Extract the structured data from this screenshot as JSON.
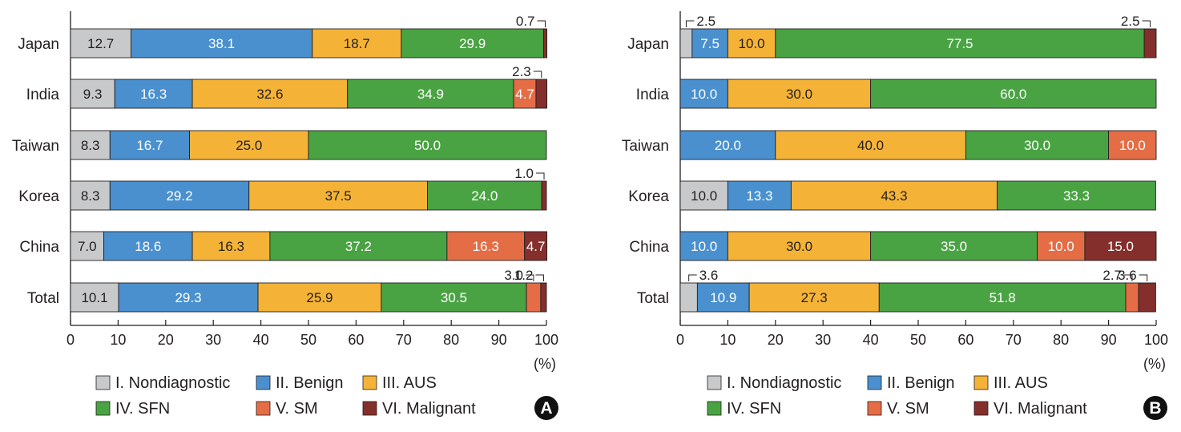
{
  "colors": {
    "I. Nondiagnostic": "#c8c9ca",
    "II. Benign": "#4a90cf",
    "III. AUS": "#f4b337",
    "IV. SFN": "#4aa343",
    "V. SM": "#e46d45",
    "VI. Malignant": "#842f2c"
  },
  "legend": [
    "I. Nondiagnostic",
    "II. Benign",
    "III. AUS",
    "IV. SFN",
    "V. SM",
    "VI. Malignant"
  ],
  "chart_data": [
    {
      "type": "bar",
      "orientation": "horizontal",
      "stacked": true,
      "panel": "A",
      "xlabel": "(%)",
      "xlim": [
        0,
        100
      ],
      "xticks": [
        0,
        10,
        20,
        30,
        40,
        50,
        60,
        70,
        80,
        90,
        100
      ],
      "categories": [
        "Japan",
        "India",
        "Taiwan",
        "Korea",
        "China",
        "Total"
      ],
      "series": [
        {
          "name": "I. Nondiagnostic",
          "values": [
            12.7,
            9.3,
            8.3,
            8.3,
            7.0,
            10.1
          ]
        },
        {
          "name": "II. Benign",
          "values": [
            38.1,
            16.3,
            16.7,
            29.2,
            18.6,
            29.3
          ]
        },
        {
          "name": "III. AUS",
          "values": [
            18.7,
            32.6,
            25.0,
            37.5,
            16.3,
            25.9
          ]
        },
        {
          "name": "IV. SFN",
          "values": [
            29.9,
            34.9,
            50.0,
            24.0,
            37.2,
            30.5
          ]
        },
        {
          "name": "V. SM",
          "values": [
            0,
            4.7,
            0,
            0,
            16.3,
            3.0
          ]
        },
        {
          "name": "VI. Malignant",
          "values": [
            0.7,
            2.3,
            0,
            1.0,
            4.7,
            1.2
          ]
        }
      ]
    },
    {
      "type": "bar",
      "orientation": "horizontal",
      "stacked": true,
      "panel": "B",
      "xlabel": "(%)",
      "xlim": [
        0,
        100
      ],
      "xticks": [
        0,
        10,
        20,
        30,
        40,
        50,
        60,
        70,
        80,
        90,
        100
      ],
      "categories": [
        "Japan",
        "India",
        "Taiwan",
        "Korea",
        "China",
        "Total"
      ],
      "series": [
        {
          "name": "I. Nondiagnostic",
          "values": [
            2.5,
            0,
            0,
            10.0,
            0,
            3.6
          ]
        },
        {
          "name": "II. Benign",
          "values": [
            7.5,
            10.0,
            20.0,
            13.3,
            10.0,
            10.9
          ]
        },
        {
          "name": "III. AUS",
          "values": [
            10.0,
            30.0,
            40.0,
            43.3,
            30.0,
            27.3
          ]
        },
        {
          "name": "IV. SFN",
          "values": [
            77.5,
            60.0,
            30.0,
            33.3,
            35.0,
            51.8
          ]
        },
        {
          "name": "V. SM",
          "values": [
            0,
            0,
            10.0,
            0,
            10.0,
            2.7
          ]
        },
        {
          "name": "VI. Malignant",
          "values": [
            2.5,
            0,
            0,
            0,
            15.0,
            3.6
          ]
        }
      ]
    }
  ]
}
